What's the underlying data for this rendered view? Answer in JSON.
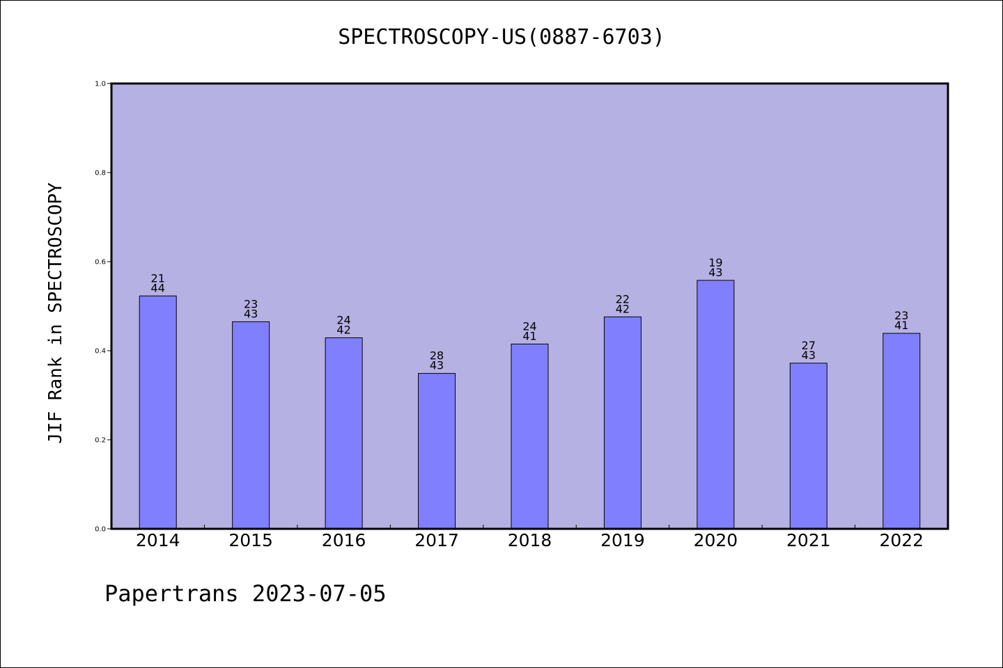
{
  "header": {
    "title": "SPECTROSCOPY-US(0887-6703)"
  },
  "footer": {
    "credit": "Papertrans 2023-07-05"
  },
  "colors": {
    "plot_background": "#b6b1e3",
    "bar_fill": "#8080ff",
    "bar_stroke": "#000000",
    "axis": "#000000"
  },
  "chart_data": {
    "type": "bar",
    "title": "SPECTROSCOPY-US(0887-6703)",
    "xlabel": "",
    "ylabel": "JIF Rank in SPECTROSCOPY",
    "ylim": [
      0,
      1.0
    ],
    "yticks": [
      "0.0",
      "0.2",
      "0.4",
      "0.6",
      "0.8",
      "1.0"
    ],
    "grid": false,
    "legend": "none",
    "categories": [
      "2014",
      "2015",
      "2016",
      "2017",
      "2018",
      "2019",
      "2020",
      "2021",
      "2022"
    ],
    "values": [
      0.523,
      0.465,
      0.429,
      0.349,
      0.415,
      0.476,
      0.558,
      0.372,
      0.439
    ],
    "labels": [
      {
        "top": "21",
        "bottom": "44"
      },
      {
        "top": "23",
        "bottom": "43"
      },
      {
        "top": "24",
        "bottom": "42"
      },
      {
        "top": "28",
        "bottom": "43"
      },
      {
        "top": "24",
        "bottom": "41"
      },
      {
        "top": "22",
        "bottom": "42"
      },
      {
        "top": "19",
        "bottom": "43"
      },
      {
        "top": "27",
        "bottom": "43"
      },
      {
        "top": "23",
        "bottom": "41"
      }
    ]
  }
}
